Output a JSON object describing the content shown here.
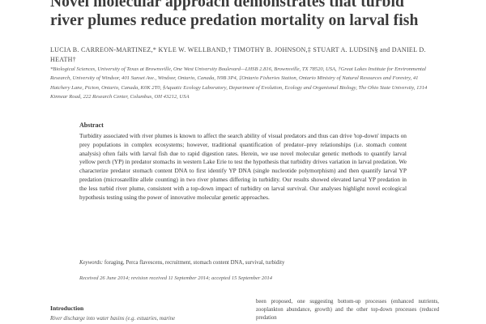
{
  "title": "Novel molecular approach demonstrates that turbid river plumes reduce predation mortality on larval fish",
  "authors": "LUCIA B. CARREON-MARTINEZ,* KYLE W. WELLBAND,† TIMOTHY B. JOHNSON,‡ STUART A. LUDSIN§ and DANIEL D. HEATH†",
  "affiliations": "*Biological Sciences, University of Texas at Brownsville, One West University Boulevard—LHSB 2.816, Brownsville, TX 78520, USA, †Great Lakes Institute for Environmental Research, University of Windsor, 401 Sunset Ave., Windsor, Ontario, Canada, N9B 3P4, ‡Ontario Fisheries Station, Ontario Ministry of Natural Resources and Forestry, 41 Hatchery Lane, Picton, Ontario, Canada, K0K 2T0, §Aquatic Ecology Laboratory, Department of Evolution, Ecology and Organismal Biology, The Ohio State University, 1314 Kinnear Road, 222 Research Center, Columbus, OH 43212, USA",
  "abstract": {
    "heading": "Abstract",
    "body": "Turbidity associated with river plumes is known to affect the search ability of visual predators and thus can drive 'top-down' impacts on prey populations in complex ecosystems; however, traditional quantification of predator–prey relationships (i.e. stomach content analysis) often fails with larval fish due to rapid digestion rates. Herein, we use novel molecular genetic methods to quantify larval yellow perch (YP) in predator stomachs in western Lake Erie to test the hypothesis that turbidity drives variation in larval predation. We characterize predator stomach content DNA to first identify YP DNA (single nucleotide polymorphism) and then quantify larval YP predation (microsatellite allele counting) in two river plumes differing in turbidity. Our results showed elevated larval YP predation in the less turbid river plume, consistent with a top-down impact of turbidity on larval survival. Our analyses highlight novel ecological hypothesis testing using the power of innovative molecular genetic approaches."
  },
  "keywords": {
    "label": "Keywords:",
    "text": "foraging, Perca flavescens, recruitment, stomach content DNA, survival, turbidity"
  },
  "received": "Received 26 June 2014; revision received 11 September 2014; accepted 15 September 2014",
  "introduction": {
    "heading": "Introduction",
    "first_line": "River discharge into water basins (e.g. estuaries, marine"
  },
  "right_column": "been proposed, one suggesting bottom-up processes (enhanced nutrients, zooplankton abundance, growth) and the other top-down processes (reduced predation"
}
